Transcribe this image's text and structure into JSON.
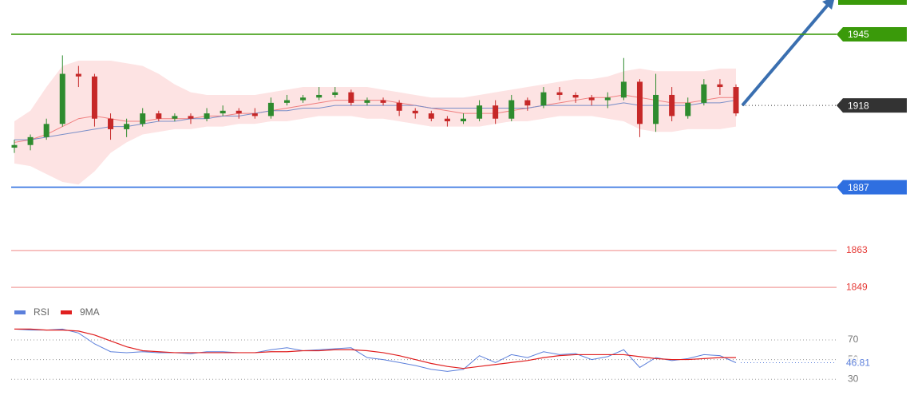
{
  "chart_data": [
    {
      "type": "candlestick",
      "open": [
        1902,
        1903,
        1906,
        1911,
        1930,
        1929,
        1913,
        1909,
        1911,
        1915,
        1913,
        1914,
        1913,
        1915,
        1916,
        1915,
        1914,
        1919,
        1920,
        1921,
        1922,
        1923,
        1919,
        1920,
        1919,
        1916,
        1915,
        1913,
        1912,
        1913,
        1918,
        1913,
        1920,
        1918,
        1923,
        1922,
        1921,
        1920,
        1921,
        1927,
        1911,
        1922,
        1914,
        1919,
        1926,
        1925
      ],
      "high": [
        1905,
        1907,
        1913,
        1937,
        1933,
        1930,
        1915,
        1913,
        1917,
        1916,
        1915,
        1915,
        1917,
        1918,
        1917,
        1917,
        1921,
        1922,
        1922,
        1925,
        1925,
        1924,
        1921,
        1921,
        1920,
        1917,
        1916,
        1914,
        1915,
        1920,
        1920,
        1922,
        1921,
        1925,
        1925,
        1923,
        1922,
        1923,
        1936,
        1928,
        1930,
        1925,
        1921,
        1928,
        1928,
        1926
      ],
      "low": [
        1900,
        1901,
        1905,
        1910,
        1925,
        1910,
        1905,
        1906,
        1910,
        1912,
        1912,
        1911,
        1912,
        1914,
        1913,
        1913,
        1913,
        1918,
        1919,
        1920,
        1921,
        1918,
        1918,
        1918,
        1914,
        1913,
        1912,
        1910,
        1911,
        1912,
        1911,
        1912,
        1916,
        1917,
        1920,
        1919,
        1918,
        1917,
        1920,
        1906,
        1908,
        1912,
        1913,
        1918,
        1922,
        1914
      ],
      "close": [
        1903,
        1906,
        1911,
        1930,
        1929,
        1913,
        1909,
        1911,
        1915,
        1913,
        1914,
        1913,
        1915,
        1916,
        1915,
        1914,
        1919,
        1920,
        1921,
        1922,
        1923,
        1919,
        1920,
        1919,
        1916,
        1915,
        1913,
        1912,
        1913,
        1918,
        1913,
        1920,
        1918,
        1923,
        1922,
        1921,
        1920,
        1921,
        1927,
        1911,
        1922,
        1914,
        1919,
        1926,
        1925,
        1915
      ],
      "up_color": "#2e8b2e",
      "down_color": "#c62828",
      "band_upper": [
        1912,
        1916,
        1925,
        1933,
        1935,
        1935,
        1935,
        1934,
        1933,
        1930,
        1926,
        1923,
        1922,
        1922,
        1922,
        1922,
        1923,
        1924,
        1925,
        1925,
        1925,
        1925,
        1925,
        1924,
        1923,
        1922,
        1921,
        1921,
        1921,
        1922,
        1923,
        1924,
        1925,
        1926,
        1927,
        1928,
        1928,
        1929,
        1931,
        1932,
        1931,
        1931,
        1931,
        1931,
        1932,
        1932
      ],
      "band_lower": [
        1896,
        1895,
        1892,
        1889,
        1888,
        1893,
        1900,
        1904,
        1907,
        1908,
        1909,
        1909,
        1910,
        1910,
        1911,
        1911,
        1912,
        1912,
        1913,
        1914,
        1914,
        1914,
        1913,
        1913,
        1912,
        1911,
        1910,
        1910,
        1910,
        1910,
        1911,
        1912,
        1912,
        1913,
        1914,
        1914,
        1914,
        1913,
        1912,
        1909,
        1908,
        1908,
        1909,
        1909,
        1909,
        1910
      ],
      "band_color": "#fde3e3",
      "ma_lines": [
        {
          "color": "#f08080",
          "values": [
            1904,
            1905,
            1907,
            1910,
            1913,
            1914,
            1913,
            1912,
            1912,
            1913,
            1913,
            1913,
            1914,
            1914,
            1915,
            1915,
            1916,
            1917,
            1918,
            1919,
            1920,
            1920,
            1920,
            1920,
            1919,
            1918,
            1917,
            1916,
            1915,
            1915,
            1915,
            1916,
            1917,
            1918,
            1919,
            1920,
            1921,
            1921,
            1922,
            1921,
            1920,
            1919,
            1919,
            1920,
            1921,
            1921
          ]
        },
        {
          "color": "#7b8fc8",
          "values": [
            1905,
            1905,
            1906,
            1907,
            1908,
            1909,
            1910,
            1910,
            1911,
            1912,
            1912,
            1913,
            1913,
            1914,
            1914,
            1915,
            1916,
            1916,
            1917,
            1917,
            1918,
            1918,
            1918,
            1918,
            1918,
            1918,
            1917,
            1917,
            1917,
            1917,
            1917,
            1917,
            1917,
            1918,
            1918,
            1918,
            1918,
            1918,
            1919,
            1918,
            1918,
            1918,
            1918,
            1919,
            1919,
            1920
          ]
        }
      ],
      "levels": [
        {
          "value": 1945,
          "color": "#3a9a0a",
          "kind": "badge"
        },
        {
          "value": 1918,
          "color": "#333333",
          "kind": "current"
        },
        {
          "value": 1887,
          "color": "#2f6fe0",
          "kind": "badge"
        },
        {
          "value": 1863,
          "color": "#e53935",
          "kind": "text"
        },
        {
          "value": 1849,
          "color": "#e53935",
          "kind": "text"
        }
      ],
      "ylim": [
        1843,
        1958
      ]
    },
    {
      "type": "line",
      "series": [
        {
          "name": "RSI",
          "color": "#5b7fdb",
          "values": [
            81,
            80,
            80,
            81,
            77,
            66,
            58,
            57,
            58,
            57,
            57,
            56,
            58,
            58,
            57,
            57,
            60,
            62,
            59,
            60,
            61,
            62,
            52,
            50,
            47,
            44,
            40,
            38,
            40,
            54,
            47,
            55,
            52,
            58,
            55,
            56,
            50,
            53,
            60,
            42,
            52,
            49,
            51,
            55,
            54,
            46.81
          ]
        },
        {
          "name": "9MA",
          "color": "#e02020",
          "values": [
            81,
            81,
            80,
            80,
            79,
            75,
            69,
            63,
            59,
            58,
            57,
            57,
            57,
            57,
            57,
            57,
            58,
            58,
            59,
            59,
            60,
            60,
            59,
            57,
            54,
            50,
            46,
            43,
            41,
            43,
            45,
            47,
            49,
            52,
            54,
            55,
            55,
            55,
            55,
            53,
            51,
            50,
            50,
            51,
            52,
            52
          ]
        }
      ],
      "ylim": [
        18,
        87
      ],
      "yticks": [
        30,
        50,
        70
      ]
    }
  ]
}
